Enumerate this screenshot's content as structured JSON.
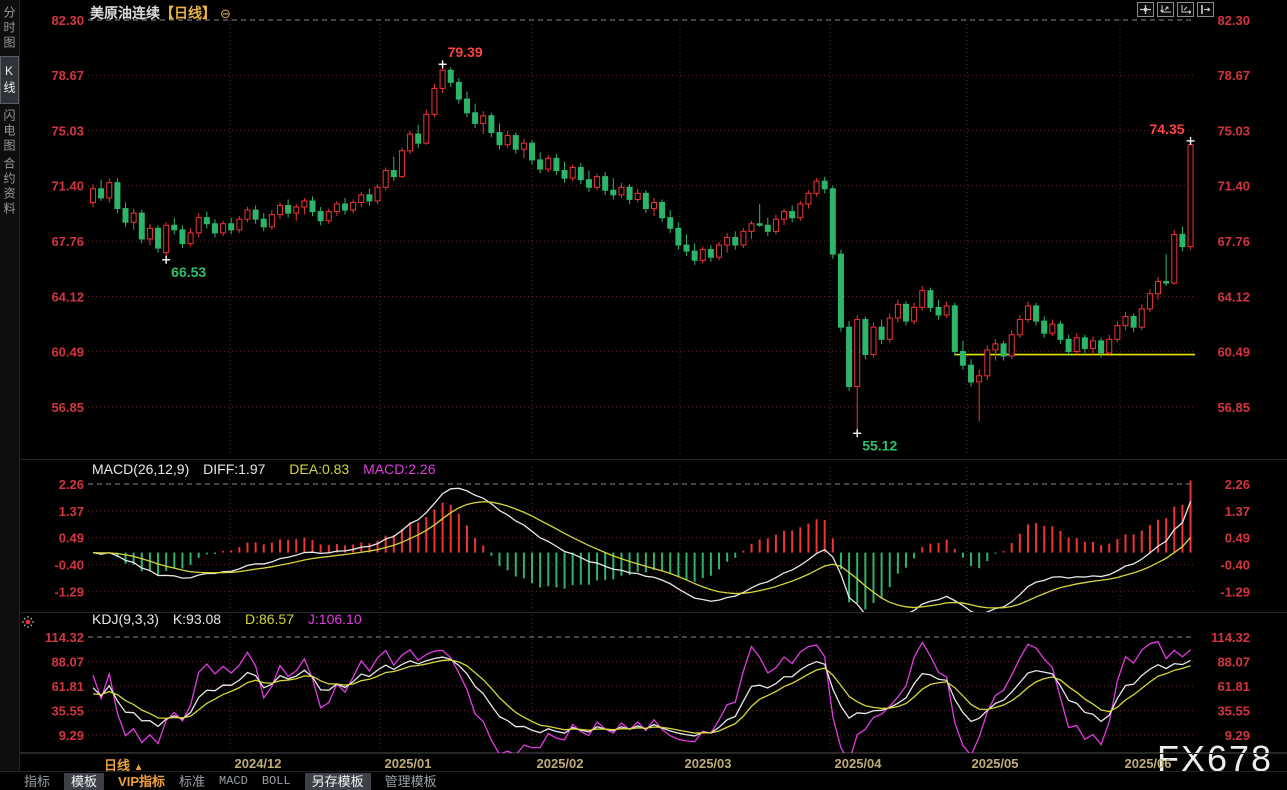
{
  "window": {
    "title_symbol": "美原油连续",
    "title_period": "【日线】",
    "collapse_icon": "⊖"
  },
  "sidebar": {
    "items": [
      {
        "label": "分时图",
        "active": false
      },
      {
        "label": "K线图",
        "active": true
      },
      {
        "label": "闪电图",
        "active": false
      },
      {
        "label": "合约资料",
        "active": false
      }
    ]
  },
  "toolbar_icons": [
    "crosshair",
    "y-axis-scale",
    "x-axis-scale",
    "shift-right"
  ],
  "bottom_bar": {
    "period_label": "日线",
    "period_arrow": "▲",
    "tabs": [
      {
        "label": "指标",
        "style": "plain"
      },
      {
        "label": "模板",
        "style": "selected"
      },
      {
        "label": "VIP指标",
        "style": "vip"
      },
      {
        "label": "标准",
        "style": "plain"
      },
      {
        "label": "MACD",
        "style": "mono"
      },
      {
        "label": "BOLL",
        "style": "mono"
      },
      {
        "label": "另存模板",
        "style": "selected"
      },
      {
        "label": "管理模板",
        "style": "plain"
      }
    ]
  },
  "watermark": "FX678",
  "chart_data": {
    "type": "candlestick",
    "x_labels": [
      "2024/12",
      "2025/01",
      "2025/02",
      "2025/03",
      "2025/04",
      "2025/05",
      "2025/06"
    ],
    "price_axis": [
      "82.30",
      "78.67",
      "75.03",
      "71.40",
      "67.76",
      "64.12",
      "60.49",
      "56.85"
    ],
    "candles": [
      [
        70.3,
        71.5,
        70.0,
        71.2
      ],
      [
        71.2,
        71.8,
        70.4,
        70.6
      ],
      [
        70.6,
        71.9,
        70.3,
        71.6
      ],
      [
        71.6,
        71.9,
        69.6,
        69.9
      ],
      [
        69.9,
        70.3,
        68.7,
        69.0
      ],
      [
        69.0,
        69.9,
        68.5,
        69.6
      ],
      [
        69.6,
        69.8,
        67.6,
        67.9
      ],
      [
        67.9,
        68.9,
        67.5,
        68.6
      ],
      [
        68.6,
        68.8,
        67.0,
        67.3
      ],
      [
        67.0,
        69.0,
        66.53,
        68.8
      ],
      [
        68.8,
        69.3,
        68.2,
        68.5
      ],
      [
        68.5,
        68.8,
        67.3,
        67.6
      ],
      [
        67.6,
        68.6,
        67.4,
        68.3
      ],
      [
        68.3,
        69.6,
        68.0,
        69.3
      ],
      [
        69.3,
        69.7,
        68.6,
        68.9
      ],
      [
        68.9,
        69.2,
        68.0,
        68.3
      ],
      [
        68.3,
        69.1,
        68.1,
        68.9
      ],
      [
        68.9,
        69.3,
        68.2,
        68.5
      ],
      [
        68.5,
        69.4,
        68.3,
        69.2
      ],
      [
        69.2,
        70.0,
        69.0,
        69.8
      ],
      [
        69.8,
        70.1,
        68.9,
        69.2
      ],
      [
        69.2,
        69.6,
        68.4,
        68.7
      ],
      [
        68.7,
        69.8,
        68.5,
        69.5
      ],
      [
        69.5,
        70.3,
        69.2,
        70.1
      ],
      [
        70.1,
        70.5,
        69.3,
        69.6
      ],
      [
        69.6,
        70.2,
        69.1,
        70.0
      ],
      [
        70.0,
        70.6,
        69.5,
        70.4
      ],
      [
        70.4,
        70.7,
        69.4,
        69.7
      ],
      [
        69.7,
        70.0,
        68.8,
        69.1
      ],
      [
        69.1,
        69.9,
        68.9,
        69.7
      ],
      [
        69.7,
        70.4,
        69.4,
        70.2
      ],
      [
        70.2,
        70.6,
        69.5,
        69.8
      ],
      [
        69.8,
        70.5,
        69.6,
        70.3
      ],
      [
        70.3,
        71.0,
        70.0,
        70.8
      ],
      [
        70.8,
        71.2,
        70.1,
        70.4
      ],
      [
        70.4,
        71.5,
        70.2,
        71.3
      ],
      [
        71.3,
        72.6,
        71.1,
        72.4
      ],
      [
        72.4,
        73.3,
        71.7,
        72.0
      ],
      [
        72.0,
        73.9,
        71.9,
        73.7
      ],
      [
        73.7,
        75.0,
        73.5,
        74.8
      ],
      [
        74.8,
        75.4,
        73.9,
        74.2
      ],
      [
        74.2,
        76.4,
        74.1,
        76.1
      ],
      [
        76.1,
        78.1,
        75.9,
        77.8
      ],
      [
        77.8,
        79.39,
        77.5,
        79.0
      ],
      [
        79.0,
        79.2,
        77.9,
        78.2
      ],
      [
        78.2,
        78.5,
        76.8,
        77.1
      ],
      [
        77.1,
        77.6,
        75.9,
        76.2
      ],
      [
        76.2,
        76.8,
        75.2,
        75.5
      ],
      [
        75.5,
        76.3,
        74.8,
        76.0
      ],
      [
        76.0,
        76.2,
        74.6,
        74.9
      ],
      [
        74.9,
        75.5,
        73.8,
        74.1
      ],
      [
        74.1,
        75.0,
        73.9,
        74.7
      ],
      [
        74.7,
        74.9,
        73.5,
        73.8
      ],
      [
        73.8,
        74.5,
        73.2,
        74.2
      ],
      [
        74.2,
        74.4,
        72.8,
        73.1
      ],
      [
        73.1,
        73.6,
        72.2,
        72.5
      ],
      [
        72.5,
        73.4,
        72.3,
        73.2
      ],
      [
        73.2,
        73.5,
        72.1,
        72.4
      ],
      [
        72.4,
        73.0,
        71.6,
        71.9
      ],
      [
        71.9,
        72.8,
        71.7,
        72.6
      ],
      [
        72.6,
        72.9,
        71.5,
        71.8
      ],
      [
        71.8,
        72.4,
        71.0,
        71.3
      ],
      [
        71.3,
        72.2,
        71.1,
        72.0
      ],
      [
        72.0,
        72.3,
        70.8,
        71.1
      ],
      [
        71.1,
        71.9,
        70.5,
        70.8
      ],
      [
        70.8,
        71.6,
        70.6,
        71.3
      ],
      [
        71.3,
        71.5,
        70.2,
        70.5
      ],
      [
        70.5,
        71.2,
        70.3,
        70.9
      ],
      [
        70.9,
        71.1,
        69.6,
        69.9
      ],
      [
        69.9,
        70.6,
        69.4,
        70.3
      ],
      [
        70.3,
        70.5,
        69.0,
        69.3
      ],
      [
        69.3,
        69.8,
        68.3,
        68.6
      ],
      [
        68.6,
        69.0,
        67.2,
        67.5
      ],
      [
        67.5,
        68.2,
        66.8,
        67.1
      ],
      [
        67.1,
        67.6,
        66.2,
        66.5
      ],
      [
        66.5,
        67.4,
        66.3,
        67.2
      ],
      [
        67.2,
        67.5,
        66.4,
        66.7
      ],
      [
        66.7,
        67.7,
        66.5,
        67.5
      ],
      [
        67.5,
        68.3,
        67.0,
        68.0
      ],
      [
        68.0,
        68.4,
        67.2,
        67.5
      ],
      [
        67.5,
        68.6,
        67.3,
        68.4
      ],
      [
        68.4,
        69.1,
        67.9,
        68.9
      ],
      [
        68.9,
        70.2,
        68.7,
        68.8
      ],
      [
        68.8,
        69.3,
        68.1,
        68.4
      ],
      [
        68.4,
        69.5,
        68.2,
        69.2
      ],
      [
        69.2,
        69.9,
        68.8,
        69.7
      ],
      [
        69.7,
        70.1,
        69.0,
        69.3
      ],
      [
        69.3,
        70.4,
        69.1,
        70.2
      ],
      [
        70.2,
        71.1,
        69.9,
        70.9
      ],
      [
        70.9,
        71.9,
        70.7,
        71.7
      ],
      [
        71.7,
        72.0,
        70.9,
        71.2
      ],
      [
        71.2,
        71.4,
        66.6,
        66.9
      ],
      [
        66.9,
        67.2,
        61.8,
        62.1
      ],
      [
        62.1,
        62.5,
        57.9,
        58.2
      ],
      [
        58.2,
        62.9,
        55.12,
        62.6
      ],
      [
        62.6,
        62.8,
        60.0,
        60.3
      ],
      [
        60.3,
        62.4,
        60.1,
        62.1
      ],
      [
        62.1,
        62.6,
        61.0,
        61.3
      ],
      [
        61.3,
        63.0,
        61.1,
        62.7
      ],
      [
        62.7,
        63.9,
        62.4,
        63.6
      ],
      [
        63.6,
        63.8,
        62.2,
        62.5
      ],
      [
        62.5,
        63.7,
        62.3,
        63.4
      ],
      [
        63.4,
        64.8,
        63.2,
        64.5
      ],
      [
        64.5,
        64.7,
        63.1,
        63.4
      ],
      [
        63.4,
        63.9,
        62.6,
        62.9
      ],
      [
        62.9,
        63.8,
        62.7,
        63.5
      ],
      [
        63.5,
        63.7,
        60.2,
        60.5
      ],
      [
        60.5,
        61.2,
        59.3,
        59.6
      ],
      [
        59.6,
        60.0,
        58.2,
        58.5
      ],
      [
        58.5,
        59.3,
        55.9,
        58.9
      ],
      [
        58.9,
        60.9,
        58.6,
        60.6
      ],
      [
        60.6,
        61.3,
        59.9,
        61.0
      ],
      [
        61.0,
        61.2,
        59.9,
        60.2
      ],
      [
        60.2,
        61.9,
        60.0,
        61.6
      ],
      [
        61.6,
        62.9,
        61.4,
        62.6
      ],
      [
        62.6,
        63.8,
        62.4,
        63.5
      ],
      [
        63.5,
        63.7,
        62.2,
        62.5
      ],
      [
        62.5,
        62.8,
        61.4,
        61.7
      ],
      [
        61.7,
        62.6,
        61.5,
        62.3
      ],
      [
        62.3,
        62.5,
        61.0,
        61.3
      ],
      [
        61.3,
        61.6,
        60.2,
        60.5
      ],
      [
        60.5,
        61.7,
        60.3,
        61.4
      ],
      [
        61.4,
        61.6,
        60.4,
        60.7
      ],
      [
        60.7,
        61.5,
        60.3,
        61.2
      ],
      [
        61.2,
        61.4,
        60.1,
        60.4
      ],
      [
        60.4,
        61.6,
        60.2,
        61.3
      ],
      [
        61.3,
        62.5,
        61.1,
        62.2
      ],
      [
        62.2,
        63.1,
        61.9,
        62.8
      ],
      [
        62.8,
        63.0,
        61.8,
        62.1
      ],
      [
        62.1,
        63.6,
        61.9,
        63.3
      ],
      [
        63.3,
        64.6,
        63.1,
        64.3
      ],
      [
        64.3,
        65.4,
        63.9,
        65.1
      ],
      [
        65.1,
        66.9,
        64.8,
        65.0
      ],
      [
        65.0,
        68.5,
        64.9,
        68.2
      ],
      [
        68.2,
        68.7,
        67.1,
        67.4
      ],
      [
        67.4,
        74.35,
        67.2,
        74.1
      ]
    ],
    "annotations": [
      {
        "text": "79.39",
        "type": "high",
        "index": 43,
        "color": "up"
      },
      {
        "text": "66.53",
        "type": "low",
        "index": 9,
        "color": "down"
      },
      {
        "text": "74.35",
        "type": "high",
        "index": 135,
        "color": "up",
        "align": "end"
      },
      {
        "text": "55.12",
        "type": "low",
        "index": 94,
        "color": "down"
      }
    ],
    "support_line": {
      "value": 60.3,
      "from_index": 106
    },
    "macd": {
      "title": "MACD(26,12,9)",
      "diff_label": "DIFF:1.97",
      "dea_label": "DEA:0.83",
      "macd_label": "MACD:2.26",
      "params": [
        26,
        12,
        9
      ],
      "axis": [
        "2.26",
        "1.37",
        "0.49",
        "-0.40",
        "-1.29"
      ]
    },
    "kdj": {
      "title": "KDJ(9,3,3)",
      "k_label": "K:93.08",
      "d_label": "D:86.57",
      "j_label": "J:106.10",
      "params": [
        9,
        3,
        3
      ],
      "axis": [
        "114.32",
        "88.07",
        "61.81",
        "35.55",
        "9.29"
      ]
    },
    "colors": {
      "candle_up": "#ef3434",
      "candle_down": "#2db56a",
      "axis_label": "#d2353f",
      "annotation_up": "#ff4242",
      "annotation_down": "#2fc06e",
      "line_white": "#e8e8e8",
      "line_yellow": "#d6d63a",
      "line_magenta": "#e23be2",
      "support": "#e6e600",
      "grid_dot": "#5a2a2d",
      "grid_dash": "#8a8a8a"
    }
  }
}
